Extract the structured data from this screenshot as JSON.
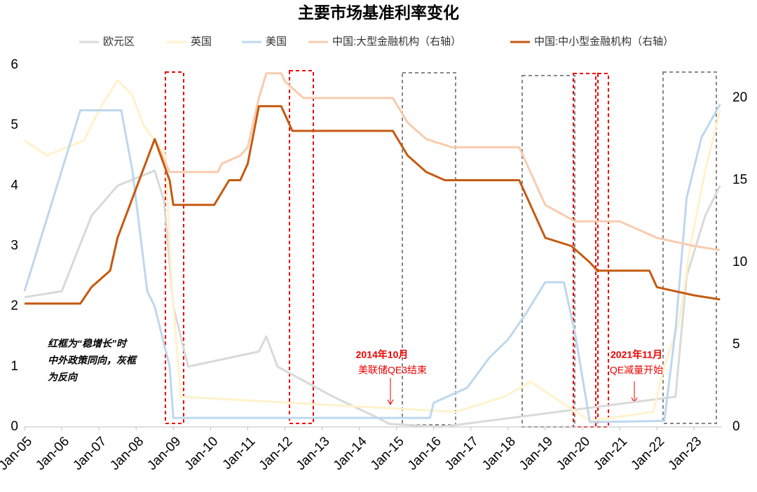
{
  "chart_data": {
    "type": "line",
    "title": "主要市场基准利率变化",
    "xlim": [
      2005,
      2023.75
    ],
    "xticks": [
      {
        "value": 2005,
        "label": "Jan-05"
      },
      {
        "value": 2006,
        "label": "Jan-06"
      },
      {
        "value": 2007,
        "label": "Jan-07"
      },
      {
        "value": 2008,
        "label": "Jan-08"
      },
      {
        "value": 2009,
        "label": "Jan-09"
      },
      {
        "value": 2010,
        "label": "Jan-10"
      },
      {
        "value": 2011,
        "label": "Jan-11"
      },
      {
        "value": 2012,
        "label": "Jan-12"
      },
      {
        "value": 2013,
        "label": "Jan-13"
      },
      {
        "value": 2014,
        "label": "Jan-14"
      },
      {
        "value": 2015,
        "label": "Jan-15"
      },
      {
        "value": 2016,
        "label": "Jan-16"
      },
      {
        "value": 2017,
        "label": "Jan-17"
      },
      {
        "value": 2018,
        "label": "Jan-18"
      },
      {
        "value": 2019,
        "label": "Jan-19"
      },
      {
        "value": 2020,
        "label": "Jan-20"
      },
      {
        "value": 2021,
        "label": "Jan-21"
      },
      {
        "value": 2022,
        "label": "Jan-22"
      },
      {
        "value": 2023,
        "label": "Jan-23"
      }
    ],
    "ylim": [
      0,
      6
    ],
    "yticks": [
      0,
      1,
      2,
      3,
      4,
      5,
      6
    ],
    "y2lim": [
      0,
      22
    ],
    "y2ticks": [
      0,
      5,
      10,
      15,
      20
    ],
    "series": [
      {
        "name": "欧元区",
        "color": "#d9d9d9",
        "x": [
          2005,
          2006,
          2006.8,
          2007.5,
          2008.5,
          2008.75,
          2009,
          2009.4,
          2011.3,
          2011.5,
          2011.8,
          2013.3,
          2014.5,
          2014.8,
          2016.2,
          2022.5,
          2022.8,
          2023.3,
          2023.7
        ],
        "values": [
          2.15,
          2.25,
          3.5,
          4.0,
          4.25,
          3.75,
          2.0,
          1.0,
          1.25,
          1.5,
          1.0,
          0.5,
          0.15,
          0.05,
          0.0,
          0.5,
          2.5,
          3.5,
          4.0
        ]
      },
      {
        "name": "英国",
        "color": "#fff2cc",
        "x": [
          2005,
          2005.6,
          2006.6,
          2007,
          2007.5,
          2007.9,
          2008.2,
          2008.8,
          2008.9,
          2009,
          2009.2,
          2016.6,
          2017.9,
          2018.6,
          2020.2,
          2021.9,
          2022.2,
          2022.6,
          2022.9,
          2023.3,
          2023.7
        ],
        "values": [
          4.75,
          4.5,
          4.75,
          5.25,
          5.75,
          5.5,
          5.0,
          4.5,
          3.0,
          2.0,
          0.5,
          0.25,
          0.5,
          0.75,
          0.1,
          0.25,
          1.0,
          1.75,
          3.0,
          4.25,
          5.25
        ]
      },
      {
        "name": "美国",
        "color": "#bdd7ee",
        "x": [
          2005,
          2005.5,
          2006.5,
          2007.6,
          2007.9,
          2008.3,
          2008.5,
          2008.9,
          2009,
          2015.9,
          2016,
          2016.9,
          2017.5,
          2018,
          2018.5,
          2019,
          2019.5,
          2019.8,
          2020.2,
          2022.2,
          2022.5,
          2022.8,
          2023.2,
          2023.7
        ],
        "values": [
          2.25,
          3.25,
          5.25,
          5.25,
          4.25,
          2.25,
          2.0,
          1.0,
          0.15,
          0.15,
          0.4,
          0.65,
          1.15,
          1.45,
          1.9,
          2.4,
          2.4,
          1.55,
          0.08,
          0.1,
          1.6,
          3.8,
          4.8,
          5.35
        ]
      },
      {
        "name": "中国:大型金融机构（右轴）",
        "color": "#f8cbad",
        "axis": "y2",
        "x": [
          2005,
          2006.5,
          2006.8,
          2007.3,
          2007.5,
          2008,
          2008.5,
          2008.9,
          2010.2,
          2010.3,
          2010.8,
          2011,
          2011.3,
          2011.5,
          2011.9,
          2012,
          2012.5,
          2014.9,
          2015.3,
          2015.8,
          2016.5,
          2018.3,
          2018.5,
          2019,
          2019.8,
          2021,
          2022,
          2023,
          2023.7
        ],
        "values": [
          7.5,
          7.5,
          8.5,
          9.5,
          11.5,
          14.5,
          17.5,
          15.5,
          15.5,
          16,
          16.5,
          17,
          20,
          21.5,
          21.5,
          21,
          20,
          20,
          18.5,
          17.5,
          17,
          17,
          16,
          13.5,
          12.5,
          12.5,
          11.5,
          11,
          10.75
        ]
      },
      {
        "name": "中国:中小型金融机构（右轴）",
        "color": "#c55a11",
        "axis": "y2",
        "x": [
          2005,
          2006.5,
          2006.8,
          2007.3,
          2007.5,
          2008,
          2008.5,
          2008.9,
          2009,
          2010.1,
          2010.5,
          2010.8,
          2011,
          2011.3,
          2011.9,
          2012.2,
          2014.9,
          2015.3,
          2015.8,
          2016.3,
          2018.3,
          2018.5,
          2019,
          2019.7,
          2020.2,
          2020.4,
          2021.8,
          2022,
          2023,
          2023.7
        ],
        "values": [
          7.5,
          7.5,
          8.5,
          9.5,
          11.5,
          14.5,
          17.5,
          15,
          13.5,
          13.5,
          15,
          15,
          16,
          19.5,
          19.5,
          18,
          18,
          16.5,
          15.5,
          15,
          15,
          14,
          11.5,
          11,
          10,
          9.5,
          9.5,
          8.5,
          8,
          7.75
        ]
      }
    ],
    "annotations": {
      "note": [
        "红框为“稳增长”时",
        "中外政策同向，灰框",
        "为反向"
      ],
      "qe3": [
        "2014年10月",
        "美联储QE3结束"
      ],
      "taper": [
        "2021年11月",
        "QE减量开始"
      ]
    }
  }
}
